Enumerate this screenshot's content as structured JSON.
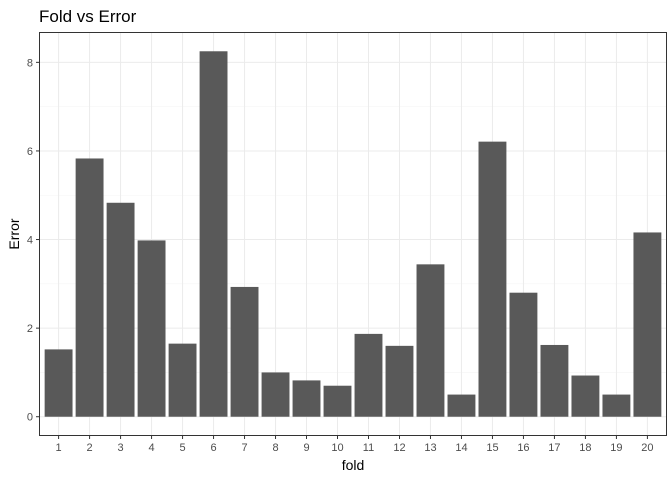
{
  "chart_data": {
    "type": "bar",
    "title": "Fold vs Error",
    "xlabel": "fold",
    "ylabel": "Error",
    "categories": [
      "1",
      "2",
      "3",
      "4",
      "5",
      "6",
      "7",
      "8",
      "9",
      "10",
      "11",
      "12",
      "13",
      "14",
      "15",
      "16",
      "17",
      "18",
      "19",
      "20"
    ],
    "values": [
      1.52,
      5.83,
      4.83,
      3.98,
      1.65,
      8.25,
      2.93,
      1.0,
      0.82,
      0.7,
      1.87,
      1.6,
      3.44,
      0.5,
      6.21,
      2.8,
      1.62,
      0.93,
      0.5,
      4.16
    ],
    "ylim": [
      -0.4125,
      8.6625
    ],
    "yticks": [
      0,
      2,
      4,
      6,
      8
    ],
    "grid": true,
    "theme": {
      "bar_color": "#595959",
      "panel_border": "#333333",
      "major_grid": "#ebebeb",
      "minor_grid": "#f5f5f5",
      "tick_color": "#333333",
      "tick_label_color": "#4d4d4d"
    }
  }
}
